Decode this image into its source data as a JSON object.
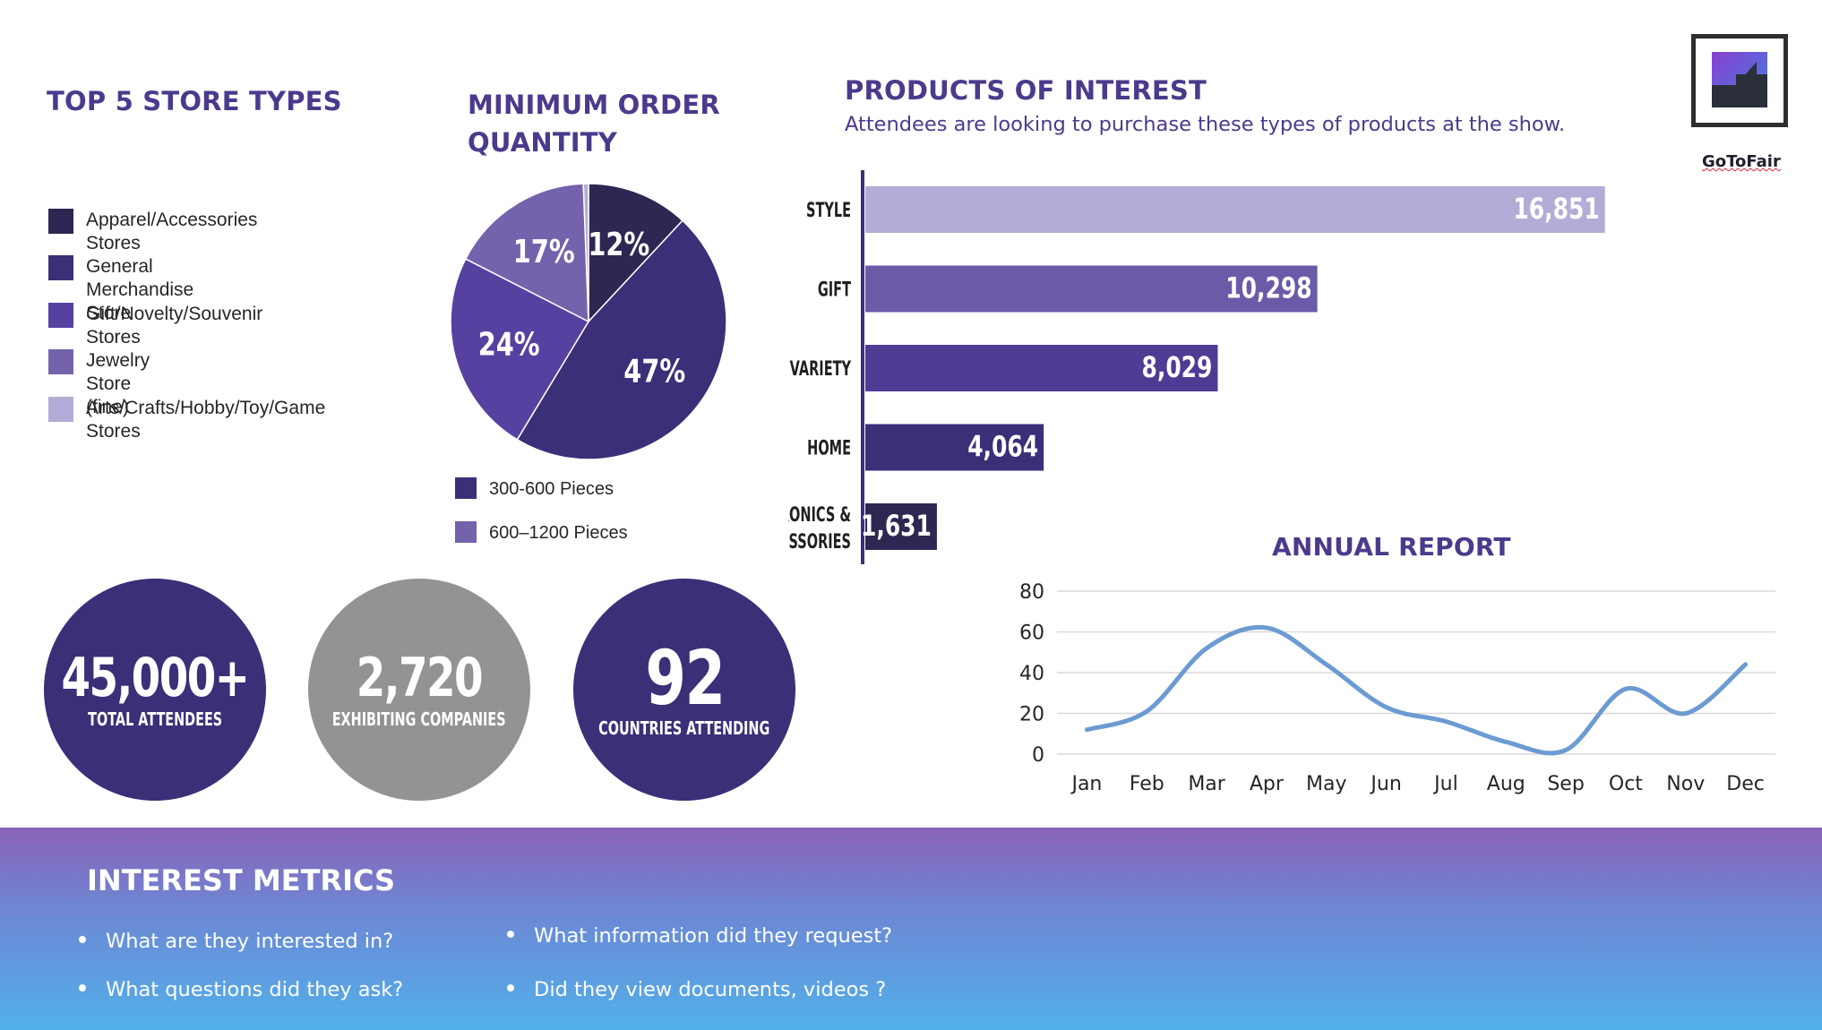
{
  "store_types": {
    "title": "TOP 5 STORE TYPES",
    "items": [
      {
        "label": "Apparel/Accessories Stores",
        "color": "#2e2752"
      },
      {
        "label": "General Merchandise Store",
        "color": "#3b2f78"
      },
      {
        "label": "Gift/Novelty/Souvenir Stores",
        "color": "#5641a0"
      },
      {
        "label": "Jewelry Store (fine)",
        "color": "#7463ac"
      },
      {
        "label": "Arts/Crafts/Hobby/Toy/Game Stores",
        "color": "#b3acd6"
      }
    ]
  },
  "min_order": {
    "title": "MINIMUM ORDER QUANTITY",
    "legend": [
      {
        "label": "300-600 Pieces",
        "color": "#3b2f78"
      },
      {
        "label": "600–1200 Pieces",
        "color": "#7463ac"
      }
    ]
  },
  "products": {
    "title": "PRODUCTS OF INTEREST",
    "subtitle": "Attendees are looking to purchase these types of products at the show."
  },
  "annual": {
    "title": "ANNUAL REPORT"
  },
  "stats": [
    {
      "value": "45,000+",
      "label": "TOTAL ATTENDEES",
      "color": "#3b2f78"
    },
    {
      "value": "2,720",
      "label": "EXHIBITING COMPANIES",
      "color": "#939395"
    },
    {
      "value": "92",
      "label": "COUNTRIES ATTENDING",
      "color": "#3b2f78"
    }
  ],
  "logo": {
    "name": "GoToFair"
  },
  "footer": {
    "title": "INTEREST METRICS",
    "bullets": [
      "What are they interested in?",
      "What questions did they ask?",
      "What information did they request?",
      "Did they view documents, videos ?"
    ]
  },
  "chart_data": [
    {
      "type": "pie",
      "title": "MINIMUM ORDER QUANTITY",
      "slices": [
        {
          "label": "12%",
          "value": 12,
          "color": "#2e2752"
        },
        {
          "label": "47%",
          "value": 47,
          "color": "#3b2f78"
        },
        {
          "label": "24%",
          "value": 24,
          "color": "#5641a0"
        },
        {
          "label": "17%",
          "value": 17,
          "color": "#7463ac"
        },
        {
          "label": "",
          "value": 0.6,
          "color": "#b3acd6"
        }
      ]
    },
    {
      "type": "bar",
      "orientation": "horizontal",
      "title": "PRODUCTS OF INTEREST",
      "categories": [
        "STYLE",
        "GIFT",
        "VARIETY",
        "HOME",
        "ELECTRONICS & ACCESSORIES"
      ],
      "visible_category_text": [
        "STYLE",
        "GIFT",
        "VARIETY",
        "HOME",
        "RONICS &",
        "ESSORIES"
      ],
      "values": [
        16851,
        10298,
        8029,
        4064,
        1631
      ],
      "value_labels": [
        "16,851",
        "10,298",
        "8,029",
        "4,064",
        "1,631"
      ],
      "colors": [
        "#b3acd6",
        "#6b5aa8",
        "#4f3b93",
        "#3b2f78",
        "#2e2752"
      ],
      "xlim": [
        0,
        20000
      ]
    },
    {
      "type": "line",
      "title": "ANNUAL REPORT",
      "x": [
        "Jan",
        "Feb",
        "Mar",
        "Apr",
        "May",
        "Jun",
        "Jul",
        "Aug",
        "Sep",
        "Oct",
        "Nov",
        "Dec"
      ],
      "series": [
        {
          "values": [
            12,
            21,
            52,
            62,
            44,
            23,
            16,
            6,
            2,
            32,
            20,
            44
          ],
          "color": "#6b9bd2"
        }
      ],
      "ylim": [
        0,
        80
      ],
      "yticks": [
        "0",
        "20",
        "40",
        "60",
        "80"
      ],
      "grid": true
    }
  ]
}
